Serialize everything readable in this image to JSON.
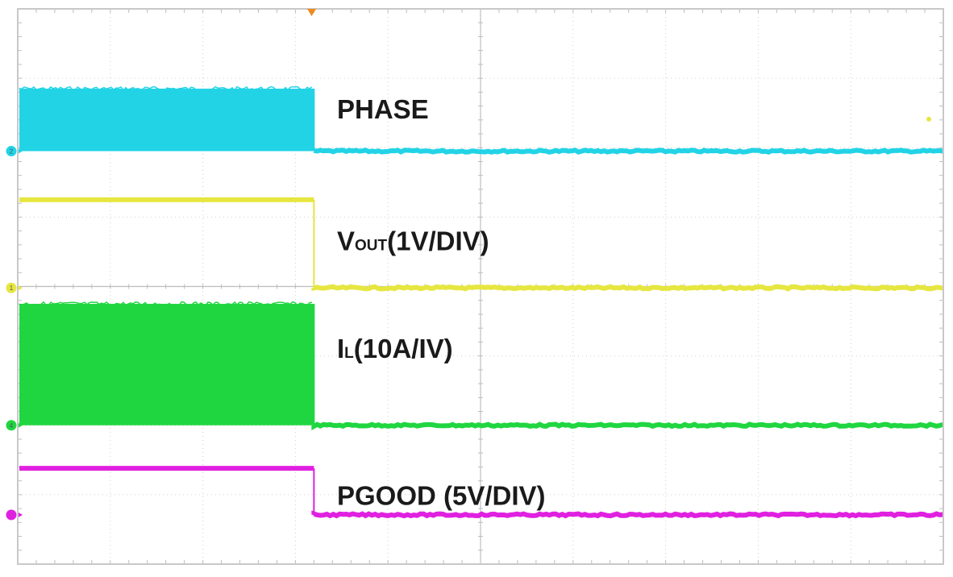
{
  "chart_data": {
    "type": "line",
    "title": "",
    "xlabel": "",
    "ylabel": "",
    "x_divisions": 10,
    "y_divisions": 8,
    "grid": true,
    "transition_division": 3.2,
    "series": [
      {
        "name": "PHASE",
        "channel": "2",
        "color": "#22d3e6",
        "label_main": "PHASE",
        "label_sub": "",
        "label_rest": "",
        "before": "switching",
        "after": "low",
        "level_high_div": 6.85,
        "level_low_div": 5.95,
        "label_y_div": 6.55
      },
      {
        "name": "VOUT(1V/DIV)",
        "channel": "1",
        "color": "#e6e640",
        "label_main": "V",
        "label_sub": "OUT",
        "label_rest": "(1V/DIV)",
        "before": "high",
        "after": "low",
        "level_high_div": 5.25,
        "level_low_div": 3.98,
        "label_y_div": 4.65
      },
      {
        "name": "IL(10A/IV)",
        "channel": "4",
        "color": "#20d640",
        "label_main": "I",
        "label_sub": "L",
        "label_rest": "(10A/IV)",
        "before": "switching",
        "after": "low",
        "level_high_div": 3.75,
        "level_low_div": 2.0,
        "label_y_div": 3.1
      },
      {
        "name": "PGOOD (5V/DIV)",
        "channel": "",
        "color": "#e020e0",
        "label_main": "PGOOD (5V/DIV)",
        "label_sub": "",
        "label_rest": "",
        "before": "high",
        "after": "low",
        "level_high_div": 1.38,
        "level_low_div": 0.71,
        "label_y_div": 0.98
      }
    ]
  }
}
